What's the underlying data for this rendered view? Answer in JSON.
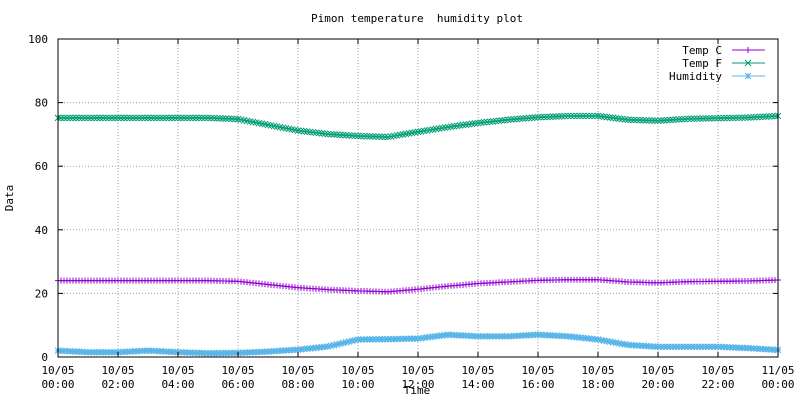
{
  "chart_data": {
    "type": "line",
    "title": "Pimon temperature  humidity plot",
    "xlabel": "Time",
    "ylabel": "Data",
    "x_ticks": [
      "10/05\n00:00",
      "10/05\n02:00",
      "10/05\n04:00",
      "10/05\n06:00",
      "10/05\n08:00",
      "10/05\n10:00",
      "10/05\n12:00",
      "10/05\n14:00",
      "10/05\n16:00",
      "10/05\n18:00",
      "10/05\n20:00",
      "10/05\n22:00",
      "11/05\n00:00"
    ],
    "x_range_hours": [
      0,
      24
    ],
    "ylim": [
      0,
      100
    ],
    "y_ticks": [
      "0",
      "20",
      "40",
      "60",
      "80",
      "100"
    ],
    "grid": true,
    "legend_position": "top-right",
    "x_hours": [
      0,
      1,
      2,
      3,
      4,
      5,
      6,
      7,
      8,
      9,
      10,
      11,
      12,
      13,
      14,
      15,
      16,
      17,
      18,
      19,
      20,
      21,
      22,
      23,
      24
    ],
    "series": [
      {
        "name": "Temp C",
        "color": "#9400d3",
        "marker": "plus",
        "values": [
          24,
          24,
          24,
          24,
          24,
          24,
          23.8,
          22.8,
          21.8,
          21.2,
          20.8,
          20.5,
          21.3,
          22.3,
          23.1,
          23.6,
          24.1,
          24.3,
          24.3,
          23.6,
          23.3,
          23.7,
          23.8,
          23.9,
          24.2
        ]
      },
      {
        "name": "Temp F",
        "color": "#009e73",
        "marker": "cross",
        "values": [
          75.2,
          75.2,
          75.2,
          75.2,
          75.2,
          75.2,
          74.8,
          73,
          71.2,
          70.1,
          69.5,
          69.2,
          70.8,
          72.3,
          73.6,
          74.6,
          75.4,
          75.8,
          75.8,
          74.6,
          74.3,
          74.9,
          75.1,
          75.3,
          75.8
        ]
      },
      {
        "name": "Humidity",
        "color": "#56b4e9",
        "marker": "star",
        "values": [
          2,
          1.5,
          1.5,
          2,
          1.5,
          1.2,
          1.3,
          1.7,
          2.3,
          3.3,
          5.5,
          5.6,
          5.8,
          7,
          6.5,
          6.5,
          7,
          6.5,
          5.5,
          3.8,
          3.2,
          3.2,
          3.2,
          2.8,
          2.2
        ]
      }
    ]
  }
}
